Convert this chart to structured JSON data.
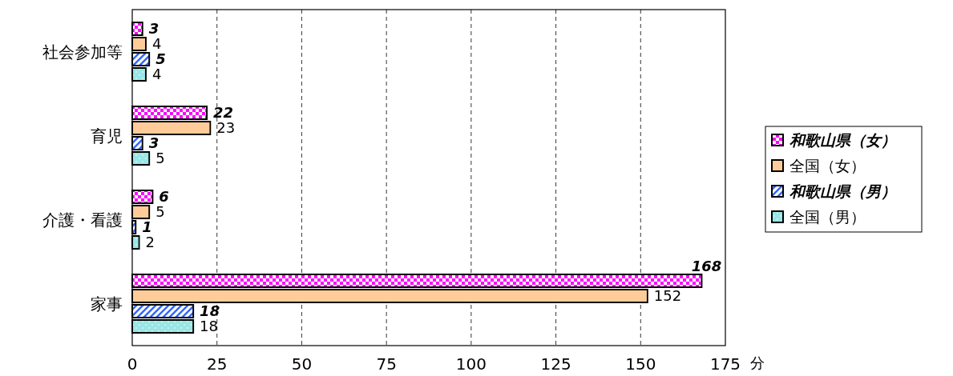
{
  "chart_data": {
    "type": "bar",
    "orientation": "horizontal",
    "categories": [
      "社会参加等",
      "育児",
      "介護・看護",
      "家事"
    ],
    "series": [
      {
        "name": "和歌山県（女）",
        "color": "#ff00ff",
        "values": [
          3,
          22,
          6,
          168
        ]
      },
      {
        "name": "全国（女）",
        "color": "#ffcc99",
        "values": [
          4,
          23,
          5,
          152
        ]
      },
      {
        "name": "和歌山県（男）",
        "color": "#3366ff",
        "values": [
          5,
          3,
          1,
          18
        ]
      },
      {
        "name": "全国（男）",
        "color": "#99e6e6",
        "values": [
          4,
          5,
          2,
          18
        ]
      }
    ],
    "xlabel": "分",
    "xlim": [
      0,
      175
    ],
    "xticks": [
      0,
      25,
      50,
      75,
      100,
      125,
      150,
      175
    ],
    "grid": "x",
    "legend": "right",
    "data_labels": true
  }
}
